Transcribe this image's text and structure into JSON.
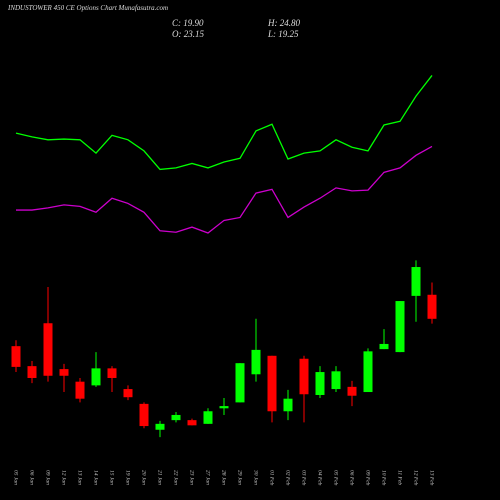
{
  "chart_data": {
    "type": "candlestick",
    "title": "INDUSTOWER 450  CE Options Chart Munafasutra.com",
    "annotations": [
      "C: 19.90",
      "H: 24.80",
      "O: 23.15",
      "L: 19.25"
    ],
    "categories": [
      "05 Jan",
      "06 Jan",
      "09 Jan",
      "12 Jan",
      "13 Jan",
      "14 Jan",
      "15 Jan",
      "19 Jan",
      "20 Jan",
      "21 Jan",
      "22 Jan",
      "23 Jan",
      "27 Jan",
      "28 Jan",
      "29 Jan",
      "30 Jan",
      "01 Feb",
      "02 Feb",
      "03 Feb",
      "04 Feb",
      "05 Feb",
      "06 Feb",
      "09 Feb",
      "10 Feb",
      "11 Feb",
      "12 Feb",
      "13 Feb"
    ],
    "open": [
      16.2,
      13.5,
      19.3,
      13.1,
      11.4,
      10.9,
      13.2,
      10.4,
      8.4,
      4.9,
      6.2,
      6.2,
      5.7,
      7.8,
      8.6,
      12.4,
      14.9,
      7.4,
      14.5,
      9.6,
      10.4,
      10.7,
      10.0,
      15.8,
      15.4,
      23.0,
      23.15
    ],
    "high": [
      17.0,
      14.2,
      24.2,
      13.8,
      11.9,
      15.4,
      13.5,
      10.9,
      8.6,
      6.1,
      7.3,
      6.4,
      7.8,
      9.2,
      13.9,
      19.9,
      14.9,
      10.3,
      14.9,
      13.5,
      13.5,
      11.5,
      15.9,
      18.5,
      22.3,
      27.8,
      24.8
    ],
    "low": [
      12.7,
      11.2,
      11.4,
      10.0,
      8.6,
      10.7,
      10.0,
      8.9,
      5.1,
      3.9,
      5.9,
      5.5,
      5.7,
      6.9,
      8.6,
      11.4,
      5.9,
      6.2,
      5.9,
      9.2,
      10.0,
      8.1,
      10.0,
      15.8,
      15.4,
      19.5,
      19.25
    ],
    "close": [
      13.4,
      11.9,
      12.2,
      12.2,
      9.1,
      13.2,
      11.9,
      9.3,
      5.4,
      5.7,
      6.9,
      5.5,
      7.4,
      8.1,
      13.9,
      15.7,
      7.4,
      9.1,
      9.7,
      12.7,
      12.8,
      9.5,
      15.5,
      16.5,
      22.3,
      26.9,
      19.9
    ],
    "up_color": "#00ff00",
    "down_color": "#ff0000",
    "lines": [
      {
        "color": "#00ff00",
        "values": [
          45.0,
          44.5,
          44.1,
          44.2,
          44.1,
          42.3,
          44.7,
          44.1,
          42.6,
          40.1,
          40.3,
          40.9,
          40.3,
          41.1,
          41.6,
          45.3,
          46.2,
          41.5,
          42.3,
          42.6,
          44.1,
          43.1,
          42.6,
          46.1,
          46.6,
          50.0,
          52.8
        ]
      },
      {
        "color": "#cc00cc",
        "values": [
          34.6,
          34.6,
          34.9,
          35.3,
          35.1,
          34.3,
          36.2,
          35.5,
          34.3,
          31.8,
          31.6,
          32.3,
          31.5,
          33.2,
          33.6,
          36.9,
          37.4,
          33.6,
          35.0,
          36.2,
          37.6,
          37.2,
          37.3,
          39.7,
          40.3,
          42.0,
          43.2
        ]
      }
    ],
    "ylim": [
      0,
      63
    ]
  }
}
